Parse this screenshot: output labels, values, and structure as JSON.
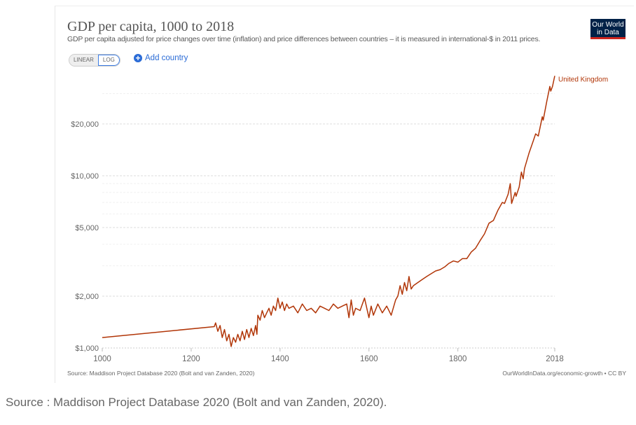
{
  "chart_data": {
    "type": "line",
    "title": "GDP per capita, 1000 to 2018",
    "subtitle": "GDP per capita adjusted for price changes over time (inflation) and price differences between countries – it is measured in international-$ in 2011 prices.",
    "y_scale": "log",
    "ylim": [
      1000,
      38000
    ],
    "xlim": [
      1000,
      2018
    ],
    "x_ticks": [
      "1000",
      "1200",
      "1400",
      "1600",
      "1800",
      "2018"
    ],
    "y_ticks": [
      {
        "value": 1000,
        "label": "$1,000"
      },
      {
        "value": 2000,
        "label": "$2,000"
      },
      {
        "value": 5000,
        "label": "$5,000"
      },
      {
        "value": 10000,
        "label": "$10,000"
      },
      {
        "value": 20000,
        "label": "$20,000"
      }
    ],
    "grid": true,
    "series": [
      {
        "name": "United Kingdom",
        "color": "#b13507",
        "x": [
          1000,
          1252,
          1255,
          1260,
          1265,
          1270,
          1275,
          1280,
          1285,
          1290,
          1295,
          1300,
          1305,
          1310,
          1315,
          1320,
          1325,
          1330,
          1335,
          1340,
          1345,
          1348,
          1350,
          1355,
          1360,
          1365,
          1370,
          1375,
          1380,
          1385,
          1390,
          1395,
          1400,
          1405,
          1410,
          1415,
          1420,
          1430,
          1440,
          1450,
          1460,
          1470,
          1480,
          1490,
          1500,
          1510,
          1520,
          1530,
          1540,
          1550,
          1555,
          1560,
          1565,
          1570,
          1580,
          1590,
          1600,
          1605,
          1610,
          1620,
          1630,
          1640,
          1650,
          1660,
          1665,
          1670,
          1675,
          1680,
          1685,
          1690,
          1695,
          1700,
          1710,
          1720,
          1730,
          1740,
          1750,
          1760,
          1770,
          1780,
          1790,
          1800,
          1810,
          1820,
          1830,
          1840,
          1850,
          1860,
          1870,
          1880,
          1890,
          1900,
          1905,
          1913,
          1918,
          1921,
          1929,
          1931,
          1938,
          1943,
          1947,
          1950,
          1960,
          1970,
          1975,
          1981,
          1990,
          1992,
          2000,
          2007,
          2009,
          2013,
          2018
        ],
        "y": [
          1150,
          1330,
          1400,
          1250,
          1350,
          1150,
          1280,
          1100,
          1200,
          1020,
          1150,
          1080,
          1200,
          1100,
          1250,
          1120,
          1280,
          1150,
          1300,
          1180,
          1350,
          1200,
          1550,
          1450,
          1650,
          1500,
          1600,
          1700,
          1550,
          1750,
          1650,
          1950,
          1700,
          1850,
          1650,
          1800,
          1700,
          1750,
          1600,
          1800,
          1650,
          1700,
          1600,
          1750,
          1700,
          1650,
          1800,
          1700,
          1750,
          1800,
          1500,
          1900,
          1550,
          1700,
          1650,
          1950,
          1500,
          1750,
          1550,
          1800,
          1600,
          1750,
          1550,
          1900,
          2000,
          2300,
          2050,
          2400,
          2150,
          2600,
          2200,
          2300,
          2400,
          2500,
          2600,
          2700,
          2800,
          2850,
          2950,
          3100,
          3200,
          3150,
          3300,
          3300,
          3600,
          3800,
          4200,
          4600,
          5300,
          5500,
          6300,
          7000,
          6900,
          7800,
          9000,
          6900,
          8000,
          7600,
          8600,
          10500,
          9600,
          11000,
          13500,
          16000,
          17500,
          17000,
          22000,
          21000,
          27000,
          33000,
          31000,
          33000,
          38000
        ]
      }
    ]
  },
  "header": {
    "logo": "Our World in Data",
    "scale_linear": "LINEAR",
    "scale_log": "LOG",
    "add_country": "Add country"
  },
  "footer": {
    "source": "Source: Maddison Project Database 2020 (Bolt and van Zanden, 2020)",
    "url": "OurWorldInData.org/economic-growth • CC BY"
  },
  "caption": "Source : Maddison Project Database 2020 (Bolt and van Zanden, 2020)."
}
